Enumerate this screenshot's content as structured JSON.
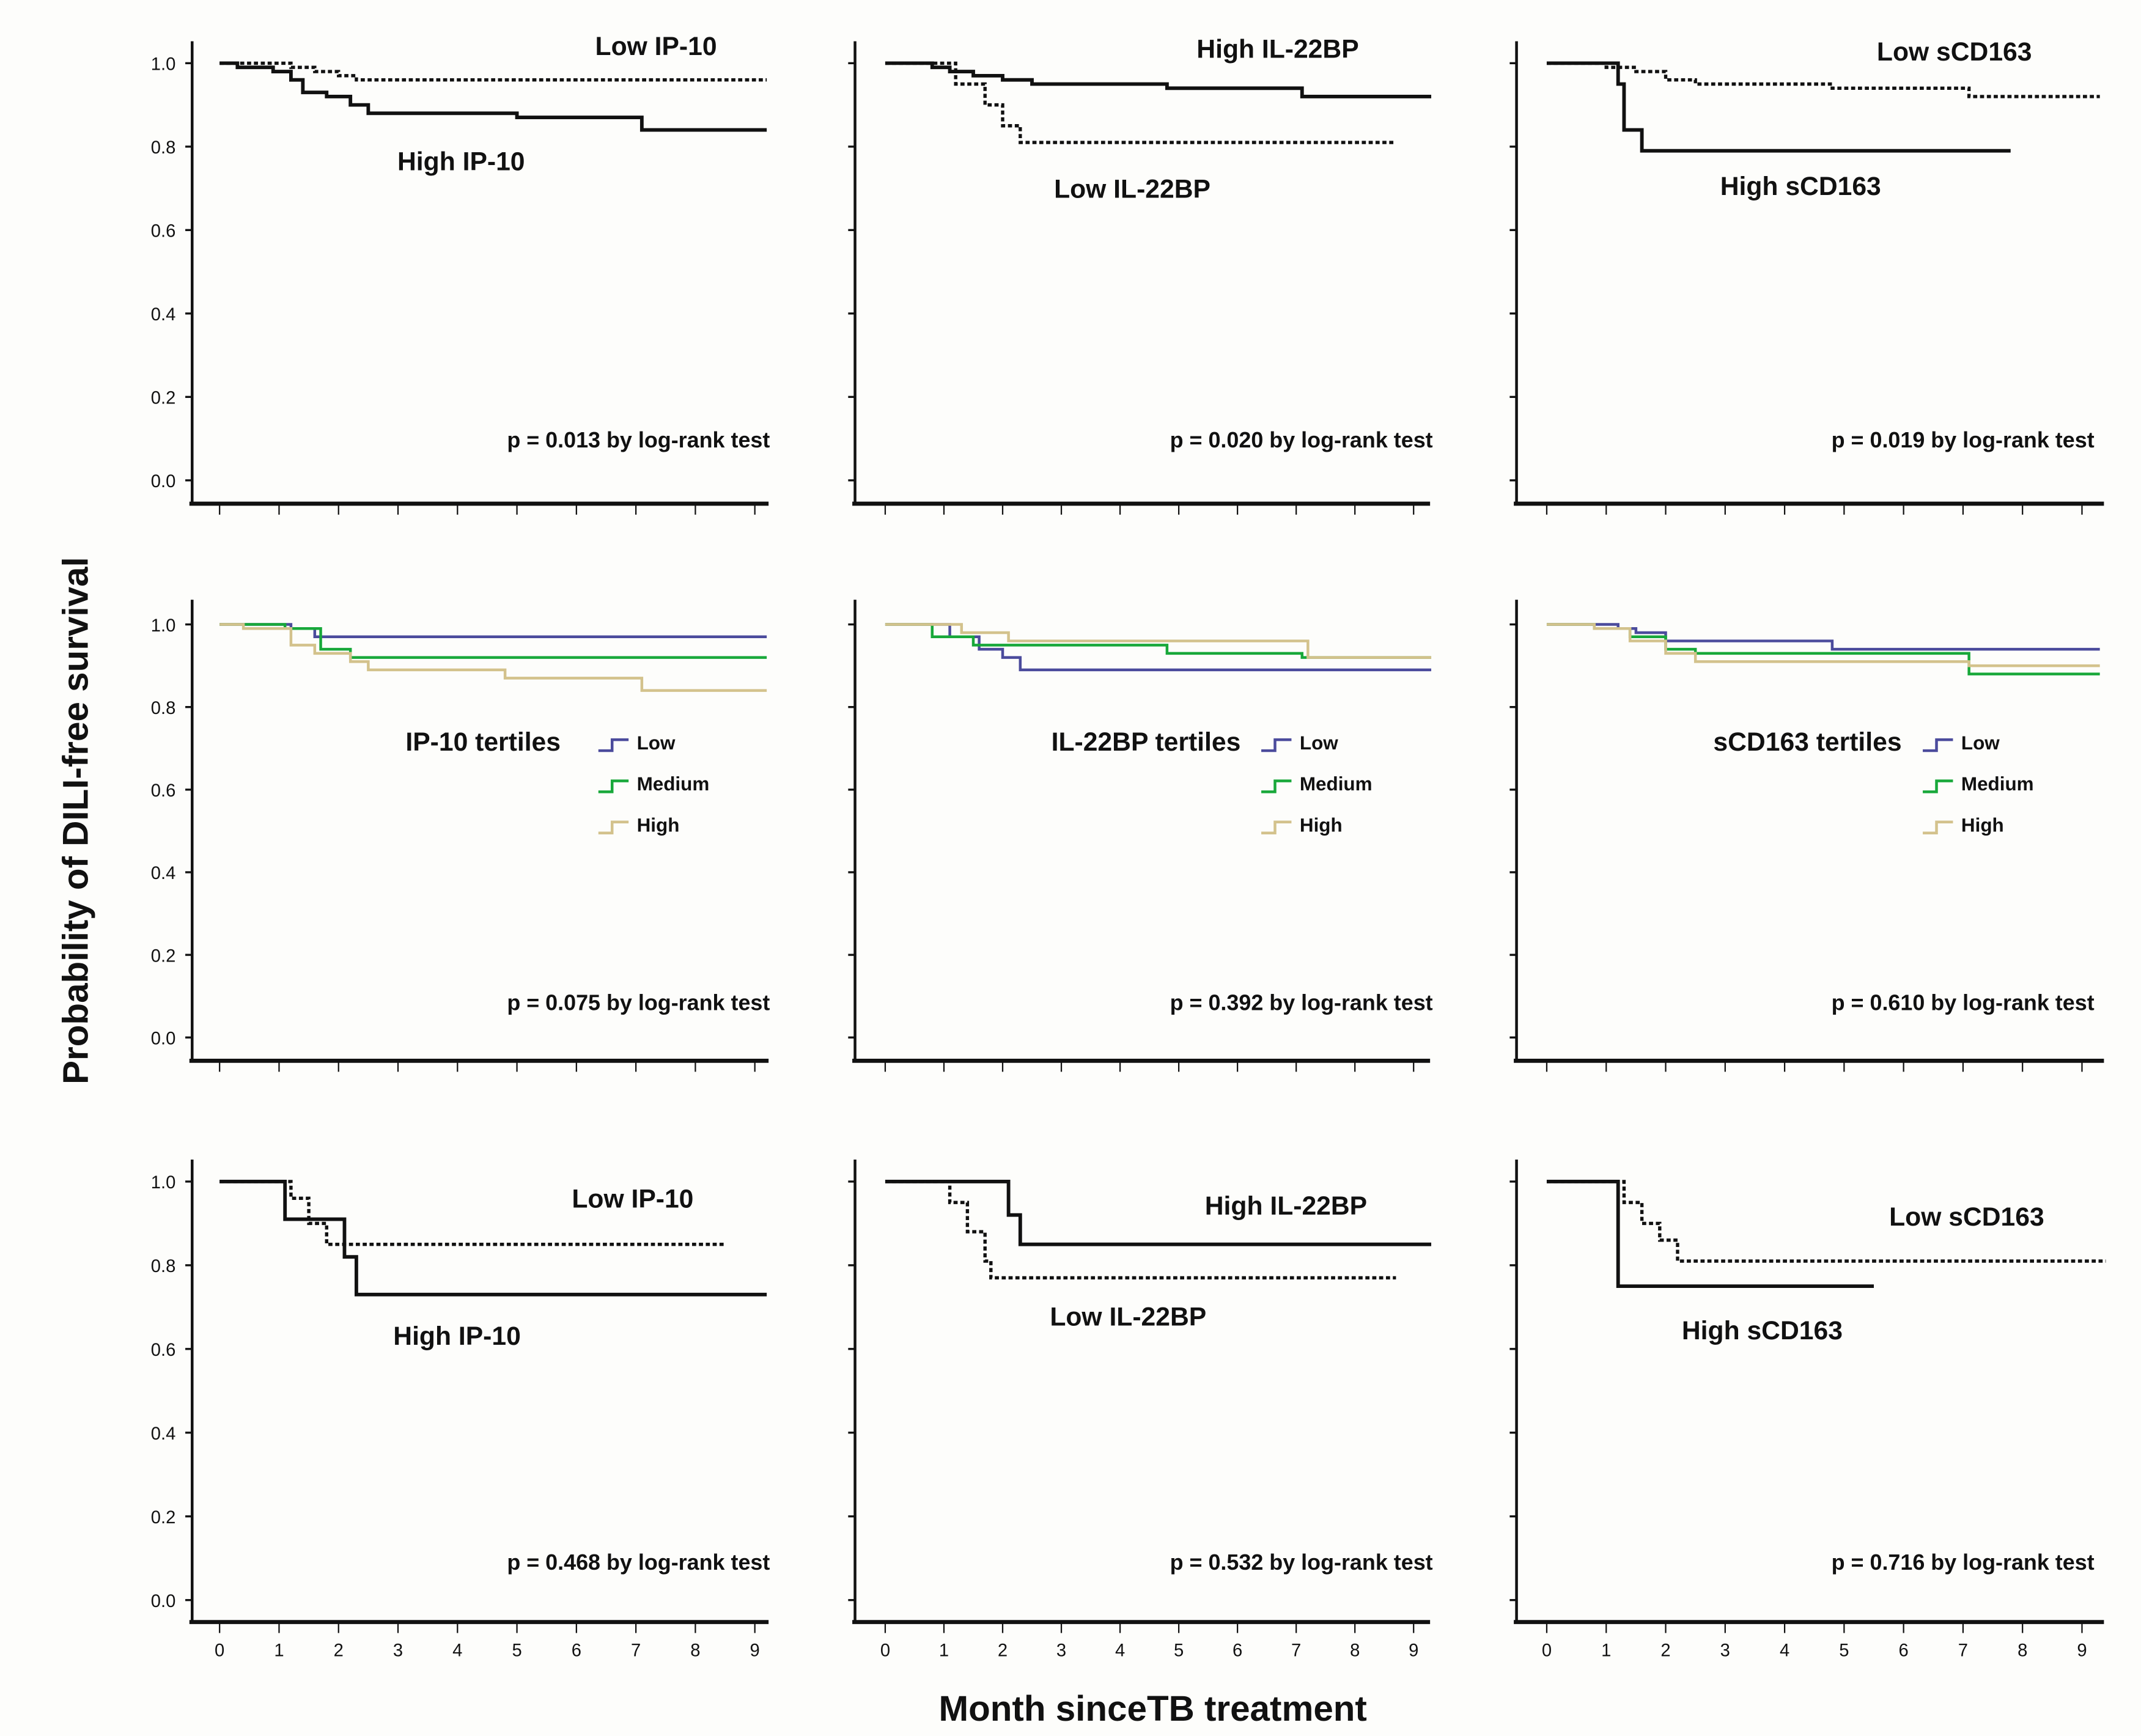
{
  "chart_data": {
    "type": "line",
    "subtype": "kaplan-meier",
    "ylabel": "Probability of DILI-free survival",
    "xlabel": "Month sinceTB treatment",
    "ylim": [
      0,
      1.0
    ],
    "xlim": [
      0,
      9
    ],
    "yticks": [
      "0.0",
      "0.2",
      "0.4",
      "0.6",
      "0.8",
      "1.0"
    ],
    "xticks": [
      "0",
      "1",
      "2",
      "3",
      "4",
      "5",
      "6",
      "7",
      "8",
      "9"
    ],
    "grid": false,
    "colors": {
      "solid": "#111111",
      "low": "#4b4b9c",
      "medium": "#18a83a",
      "high": "#d3c28c"
    },
    "panels": [
      {
        "p_text": "p = 0.013 by log-rank test",
        "legend": null,
        "series": [
          {
            "name": "Low IP-10",
            "style": "dashed",
            "steps": [
              [
                0,
                1
              ],
              [
                1.2,
                0.99
              ],
              [
                1.6,
                0.98
              ],
              [
                2.0,
                0.97
              ],
              [
                2.3,
                0.96
              ]
            ],
            "end": 9.2
          },
          {
            "name": "High IP-10",
            "style": "solid",
            "steps": [
              [
                0,
                1
              ],
              [
                0.3,
                0.99
              ],
              [
                0.9,
                0.98
              ],
              [
                1.2,
                0.96
              ],
              [
                1.4,
                0.93
              ],
              [
                1.8,
                0.92
              ],
              [
                2.2,
                0.9
              ],
              [
                2.5,
                0.88
              ],
              [
                5.0,
                0.87
              ],
              [
                7.1,
                0.84
              ]
            ],
            "end": 9.2
          }
        ]
      },
      {
        "p_text": "p = 0.020 by log-rank test",
        "legend": null,
        "series": [
          {
            "name": "High IL-22BP",
            "style": "solid",
            "steps": [
              [
                0,
                1
              ],
              [
                0.8,
                0.99
              ],
              [
                1.1,
                0.98
              ],
              [
                1.5,
                0.97
              ],
              [
                2.0,
                0.96
              ],
              [
                2.5,
                0.95
              ],
              [
                4.8,
                0.94
              ],
              [
                7.1,
                0.92
              ]
            ],
            "end": 9.3
          },
          {
            "name": "Low IL-22BP",
            "style": "dashed",
            "steps": [
              [
                0,
                1
              ],
              [
                1.2,
                0.95
              ],
              [
                1.7,
                0.9
              ],
              [
                2.0,
                0.85
              ],
              [
                2.3,
                0.81
              ]
            ],
            "end": 8.7
          }
        ]
      },
      {
        "p_text": "p = 0.019 by log-rank test",
        "legend": null,
        "series": [
          {
            "name": "Low sCD163",
            "style": "dashed",
            "steps": [
              [
                0,
                1
              ],
              [
                1.0,
                0.99
              ],
              [
                1.5,
                0.98
              ],
              [
                2.0,
                0.96
              ],
              [
                2.5,
                0.95
              ],
              [
                4.8,
                0.94
              ],
              [
                7.1,
                0.92
              ]
            ],
            "end": 9.3
          },
          {
            "name": "High sCD163",
            "style": "solid",
            "steps": [
              [
                0,
                1
              ],
              [
                1.2,
                0.95
              ],
              [
                1.3,
                0.84
              ],
              [
                1.6,
                0.79
              ]
            ],
            "end": 7.8
          }
        ]
      },
      {
        "p_text": "p = 0.075 by log-rank test",
        "legend": {
          "title": "IP-10 tertiles",
          "items": [
            "Low",
            "Medium",
            "High"
          ]
        },
        "series": [
          {
            "name": "Low",
            "style": "low",
            "steps": [
              [
                0,
                1
              ],
              [
                1.2,
                0.99
              ],
              [
                1.6,
                0.97
              ]
            ],
            "end": 9.2
          },
          {
            "name": "Medium",
            "style": "medium",
            "steps": [
              [
                0,
                1
              ],
              [
                1.1,
                0.99
              ],
              [
                1.7,
                0.94
              ],
              [
                2.2,
                0.92
              ]
            ],
            "end": 9.2
          },
          {
            "name": "High",
            "style": "high",
            "steps": [
              [
                0,
                1
              ],
              [
                0.4,
                0.99
              ],
              [
                1.2,
                0.95
              ],
              [
                1.6,
                0.93
              ],
              [
                2.2,
                0.91
              ],
              [
                2.5,
                0.89
              ],
              [
                4.8,
                0.87
              ],
              [
                7.1,
                0.84
              ]
            ],
            "end": 9.2
          }
        ]
      },
      {
        "p_text": "p = 0.392 by log-rank test",
        "legend": {
          "title": "IL-22BP tertiles",
          "items": [
            "Low",
            "Medium",
            "High"
          ]
        },
        "series": [
          {
            "name": "Low",
            "style": "low",
            "steps": [
              [
                0,
                1
              ],
              [
                1.1,
                0.97
              ],
              [
                1.6,
                0.94
              ],
              [
                2.0,
                0.92
              ],
              [
                2.3,
                0.89
              ]
            ],
            "end": 9.3
          },
          {
            "name": "Medium",
            "style": "medium",
            "steps": [
              [
                0,
                1
              ],
              [
                0.8,
                0.97
              ],
              [
                1.5,
                0.95
              ],
              [
                4.8,
                0.93
              ],
              [
                7.1,
                0.92
              ]
            ],
            "end": 9.3
          },
          {
            "name": "High",
            "style": "high",
            "steps": [
              [
                0,
                1
              ],
              [
                1.3,
                0.98
              ],
              [
                2.1,
                0.96
              ],
              [
                7.2,
                0.92
              ]
            ],
            "end": 9.3
          }
        ]
      },
      {
        "p_text": "p = 0.610 by log-rank test",
        "legend": {
          "title": "sCD163 tertiles",
          "items": [
            "Low",
            "Medium",
            "High"
          ]
        },
        "series": [
          {
            "name": "Low",
            "style": "low",
            "steps": [
              [
                0,
                1
              ],
              [
                0.8,
                1.0
              ],
              [
                1.2,
                0.99
              ],
              [
                1.5,
                0.98
              ],
              [
                2.0,
                0.96
              ],
              [
                4.8,
                0.94
              ]
            ],
            "end": 9.3
          },
          {
            "name": "Medium",
            "style": "medium",
            "steps": [
              [
                0,
                1
              ],
              [
                0.8,
                0.99
              ],
              [
                1.4,
                0.97
              ],
              [
                2.0,
                0.94
              ],
              [
                2.5,
                0.93
              ],
              [
                7.1,
                0.88
              ]
            ],
            "end": 9.3
          },
          {
            "name": "High",
            "style": "high",
            "steps": [
              [
                0,
                1
              ],
              [
                0.8,
                0.99
              ],
              [
                1.4,
                0.96
              ],
              [
                2.0,
                0.93
              ],
              [
                2.5,
                0.91
              ],
              [
                7.1,
                0.9
              ]
            ],
            "end": 9.3
          }
        ]
      },
      {
        "p_text": "p = 0.468 by log-rank test",
        "legend": null,
        "series": [
          {
            "name": "Low IP-10",
            "style": "dashed",
            "steps": [
              [
                0,
                1
              ],
              [
                1.2,
                0.96
              ],
              [
                1.5,
                0.9
              ],
              [
                1.8,
                0.85
              ]
            ],
            "end": 8.5
          },
          {
            "name": "High IP-10",
            "style": "solid",
            "steps": [
              [
                0,
                1
              ],
              [
                1.1,
                0.91
              ],
              [
                2.1,
                0.82
              ],
              [
                2.3,
                0.73
              ]
            ],
            "end": 9.2
          }
        ]
      },
      {
        "p_text": "p = 0.532 by log-rank test",
        "legend": null,
        "series": [
          {
            "name": "High IL-22BP",
            "style": "solid",
            "steps": [
              [
                0,
                1
              ],
              [
                2.1,
                0.92
              ],
              [
                2.3,
                0.85
              ]
            ],
            "end": 9.3
          },
          {
            "name": "Low IL-22BP",
            "style": "dashed",
            "steps": [
              [
                0,
                1
              ],
              [
                1.1,
                0.95
              ],
              [
                1.4,
                0.88
              ],
              [
                1.7,
                0.81
              ],
              [
                1.8,
                0.77
              ]
            ],
            "end": 8.7
          }
        ]
      },
      {
        "p_text": "p = 0.716 by log-rank test",
        "legend": null,
        "series": [
          {
            "name": "Low sCD163",
            "style": "dashed",
            "steps": [
              [
                0,
                1
              ],
              [
                1.3,
                0.95
              ],
              [
                1.6,
                0.9
              ],
              [
                1.9,
                0.86
              ],
              [
                2.2,
                0.81
              ]
            ],
            "end": 9.4
          },
          {
            "name": "High sCD163",
            "style": "solid",
            "steps": [
              [
                0,
                1
              ],
              [
                1.2,
                0.75
              ]
            ],
            "end": 5.5
          }
        ]
      }
    ]
  }
}
